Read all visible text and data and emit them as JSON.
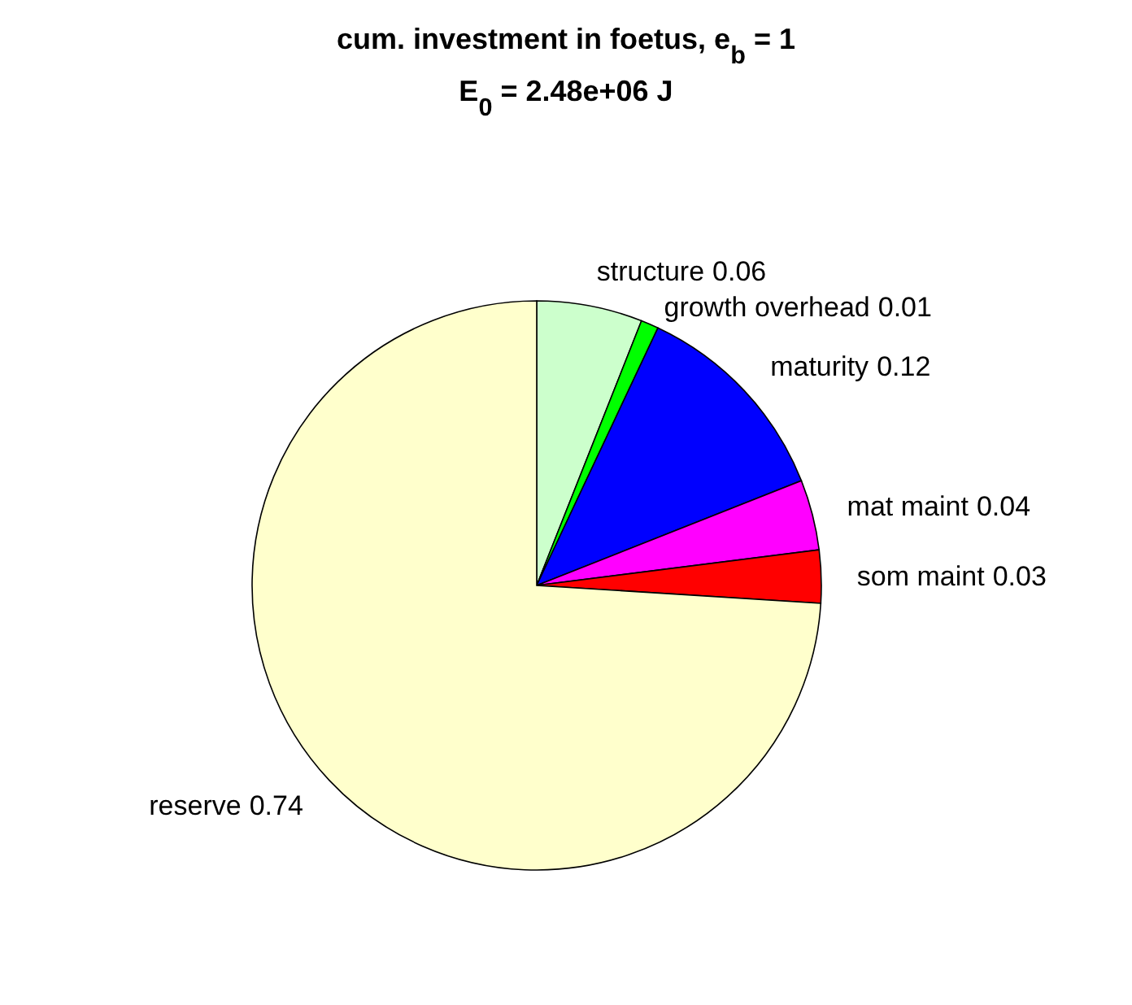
{
  "chart_data": {
    "type": "pie",
    "title": "cum. investment in foetus, e$_{b}$ = 1",
    "subtitle": "E$_{0}$ = 2.48e+06 J",
    "categories": [
      "structure",
      "growth overhead",
      "maturity",
      "mat maint",
      "som maint",
      "reserve"
    ],
    "values": [
      0.06,
      0.01,
      0.12,
      0.04,
      0.03,
      0.74
    ],
    "colors": [
      "#ccffcc",
      "#00ff00",
      "#0000ff",
      "#ff00ff",
      "#ff0000",
      "#ffffcc"
    ],
    "data_labels": true
  }
}
